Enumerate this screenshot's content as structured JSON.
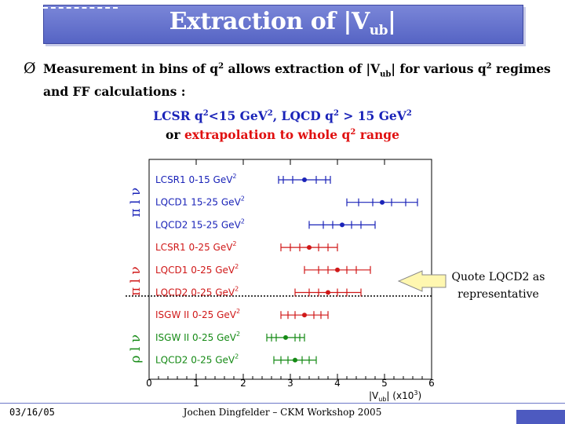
{
  "slide": {
    "title": "Extraction of |V",
    "title_sub": "ub",
    "title_end": "|",
    "bullet_symbol": "Ø",
    "bullet_p1": "Measurement in bins of q",
    "bullet_sup1": "2",
    "bullet_p2": " allows extraction of |V",
    "bullet_sub": "ub",
    "bullet_p3": "| for various q",
    "bullet_sup2": "2",
    "bullet_p4": " regimes and FF calculations :",
    "caption1_p1": "LCSR q",
    "caption1_sup1": "2",
    "caption1_p2": "<15 GeV",
    "caption1_sup2": "2",
    "caption1_p3": ",  LQCD q",
    "caption1_sup3": "2",
    "caption1_p4": " > 15 GeV",
    "caption1_sup4": "2",
    "caption2_or": "or  ",
    "caption2_red": "extrapolation to whole q",
    "caption2_sup": "2",
    "caption2_red2": " range",
    "arrow_label_l1": "Quote LQCD2 as",
    "arrow_label_l2": "representative",
    "footer_date": "03/16/05",
    "footer_center": "Jochen Dingfelder – CKM Workshop 2005"
  },
  "chart_data": {
    "type": "scatter",
    "xlabel": "|V",
    "xlabel_sub": "ub",
    "xlabel_end": "|  (x10",
    "xlabel_sup": "3",
    "xlabel_close": ")",
    "xlim": [
      0,
      6
    ],
    "x_ticks": [
      "0",
      "1",
      "2",
      "3",
      "4",
      "5",
      "6"
    ],
    "groups": [
      {
        "label": "π l ν",
        "color": "#1a23b8"
      },
      {
        "label": "π l ν",
        "color": "#d01818"
      },
      {
        "label": "ρ l ν",
        "color": "#158a15"
      }
    ],
    "rows": [
      {
        "label": "LCSR1  0-15 GeV",
        "sup": "2",
        "group": 0,
        "value": 3.3,
        "stat": 0.25,
        "inner": 0.45,
        "outer": 0.55
      },
      {
        "label": "LQCD1  15-25 GeV",
        "sup": "2",
        "group": 0,
        "value": 4.95,
        "stat": 0.2,
        "inner": 0.5,
        "outer": 0.75
      },
      {
        "label": "LQCD2  15-25 GeV",
        "sup": "2",
        "group": 0,
        "value": 4.1,
        "stat": 0.2,
        "inner": 0.4,
        "outer": 0.7
      },
      {
        "label": "LCSR1  0-25 GeV",
        "sup": "2",
        "group": 1,
        "value": 3.4,
        "stat": 0.2,
        "inner": 0.4,
        "outer": 0.6
      },
      {
        "label": "LQCD1  0-25 GeV",
        "sup": "2",
        "group": 1,
        "value": 4.0,
        "stat": 0.2,
        "inner": 0.4,
        "outer": 0.7
      },
      {
        "label": "LQCD2  0-25 GeV",
        "sup": "2",
        "group": 1,
        "value": 3.8,
        "stat": 0.2,
        "inner": 0.4,
        "outer": 0.7
      },
      {
        "label": "ISGW II  0-25 GeV",
        "sup": "2",
        "group": 1,
        "value": 3.3,
        "stat": 0.2,
        "inner": 0.35,
        "outer": 0.5
      },
      {
        "label": "ISGW II  0-25 GeV",
        "sup": "2",
        "group": 2,
        "value": 2.9,
        "stat": 0.2,
        "inner": 0.3,
        "outer": 0.4
      },
      {
        "label": "LQCD2  0-25 GeV",
        "sup": "2",
        "group": 2,
        "value": 3.1,
        "stat": 0.15,
        "inner": 0.3,
        "outer": 0.45
      }
    ]
  }
}
